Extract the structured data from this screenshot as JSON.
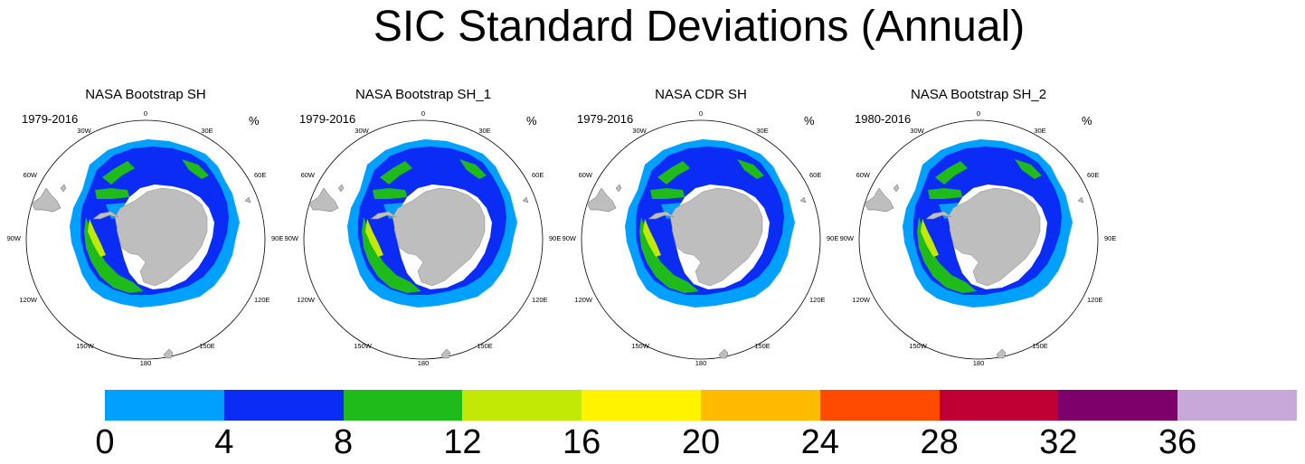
{
  "title": "SIC Standard Deviations (Annual)",
  "units": "%",
  "panels": [
    {
      "title": "NASA Bootstrap SH",
      "period": "1979-2016"
    },
    {
      "title": "NASA Bootstrap SH_1",
      "period": "1979-2016"
    },
    {
      "title": "NASA CDR SH",
      "period": "1979-2016"
    },
    {
      "title": "NASA Bootstrap SH_2",
      "period": "1980-2016"
    }
  ],
  "longitude_labels": {
    "l0": "0",
    "l30e": "30E",
    "l60e": "60E",
    "l90e": "90E",
    "l120e": "120E",
    "l150e": "150E",
    "l180": "180",
    "l150w": "150W",
    "l120w": "120W",
    "l90w": "90W",
    "l60w": "60W",
    "l30w": "30W"
  },
  "colorbar": {
    "ticks": [
      "0",
      "4",
      "8",
      "12",
      "16",
      "20",
      "24",
      "28",
      "32",
      "36"
    ],
    "colors": [
      "#00a0ff",
      "#0a2cf5",
      "#1fbb1a",
      "#c2e805",
      "#fff300",
      "#ffbb00",
      "#ff4a00",
      "#c00035",
      "#7d006b",
      "#c8a8d8"
    ]
  },
  "colors": {
    "land": "#bebebe",
    "ocean": "#ffffff",
    "band_0_4": "#00a0ff",
    "band_4_8": "#0a2cf5",
    "band_8_12": "#1fbb1a",
    "band_12_16": "#c2e805"
  }
}
